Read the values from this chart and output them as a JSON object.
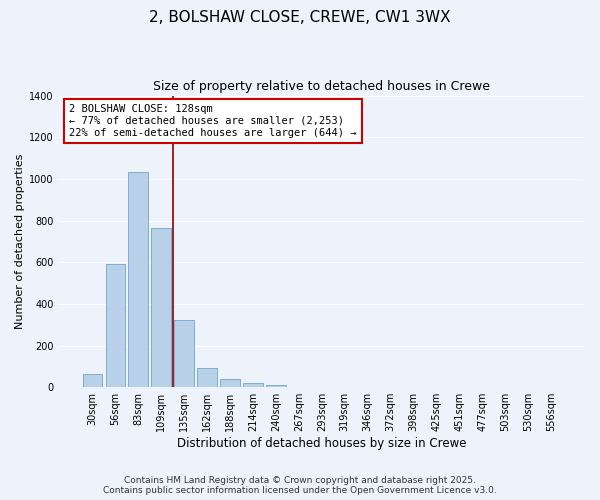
{
  "title": "2, BOLSHAW CLOSE, CREWE, CW1 3WX",
  "subtitle": "Size of property relative to detached houses in Crewe",
  "xlabel": "Distribution of detached houses by size in Crewe",
  "ylabel": "Number of detached properties",
  "bar_labels": [
    "30sqm",
    "56sqm",
    "83sqm",
    "109sqm",
    "135sqm",
    "162sqm",
    "188sqm",
    "214sqm",
    "240sqm",
    "267sqm",
    "293sqm",
    "319sqm",
    "346sqm",
    "372sqm",
    "398sqm",
    "425sqm",
    "451sqm",
    "477sqm",
    "503sqm",
    "530sqm",
    "556sqm"
  ],
  "bar_values": [
    65,
    590,
    1035,
    765,
    325,
    90,
    40,
    20,
    10,
    0,
    0,
    0,
    0,
    0,
    0,
    0,
    0,
    0,
    0,
    0,
    0
  ],
  "bar_color": "#b8d0e8",
  "bar_edge_color": "#7aaecf",
  "vline_color": "#8b0000",
  "annotation_title": "2 BOLSHAW CLOSE: 128sqm",
  "annotation_line1": "← 77% of detached houses are smaller (2,253)",
  "annotation_line2": "22% of semi-detached houses are larger (644) →",
  "annotation_box_color": "#ffffff",
  "annotation_border_color": "#cc0000",
  "ylim": [
    0,
    1400
  ],
  "yticks": [
    0,
    200,
    400,
    600,
    800,
    1000,
    1200,
    1400
  ],
  "background_color": "#eef2fa",
  "footer_line1": "Contains HM Land Registry data © Crown copyright and database right 2025.",
  "footer_line2": "Contains public sector information licensed under the Open Government Licence v3.0.",
  "title_fontsize": 11,
  "subtitle_fontsize": 9,
  "ylabel_fontsize": 8,
  "xlabel_fontsize": 8.5,
  "tick_fontsize": 7,
  "annotation_fontsize": 7.5,
  "footer_fontsize": 6.5,
  "grid_color": "#ffffff"
}
